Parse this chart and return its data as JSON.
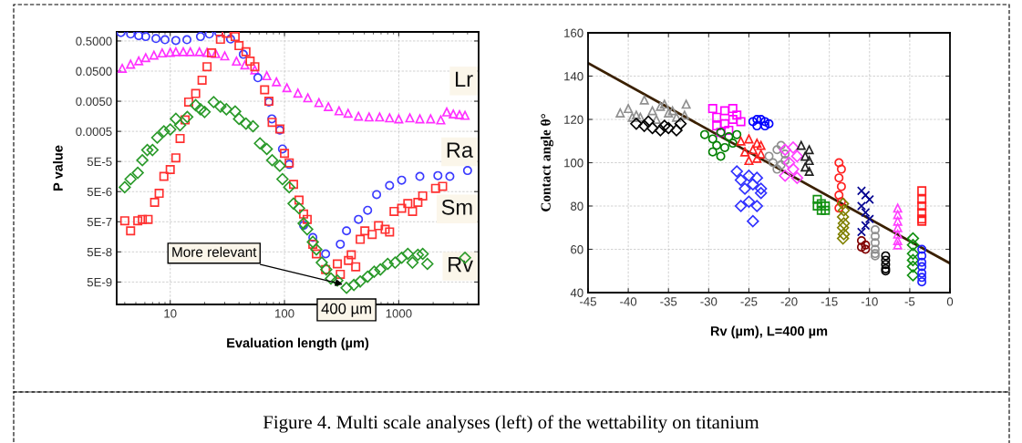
{
  "chart_data": [
    {
      "type": "scatter",
      "xlabel": "Evaluation length (µm)",
      "ylabel": "P value",
      "log": "xy",
      "grid": true,
      "xlim": [
        3.4,
        5000
      ],
      "ylim": [
        9e-10,
        1
      ],
      "xticks": [
        10,
        100,
        1000
      ],
      "yticks": [
        {
          "value": 0.5,
          "label": "0.5000"
        },
        {
          "value": 0.05,
          "label": "0.0500"
        },
        {
          "value": 0.005,
          "label": "0.0050"
        },
        {
          "value": 0.0005,
          "label": "0.0005"
        },
        {
          "value": 5e-05,
          "label": "5E-5"
        },
        {
          "value": 5e-06,
          "label": "5E-6"
        },
        {
          "value": 5e-07,
          "label": "5E-7"
        },
        {
          "value": 5e-08,
          "label": "5E-8"
        },
        {
          "value": 5e-09,
          "label": "5E-9"
        }
      ],
      "annotations": [
        {
          "text": "More relevant",
          "x": 340,
          "y": 4e-09
        },
        "400 µm",
        "Figure 4. Multi scale analyses (left) of the wettability on titanium"
      ],
      "series": [
        {
          "name": "Lr",
          "color": "#ff30ff",
          "marker": "triangle",
          "x": [
            3.8,
            4.5,
            5.3,
            6.1,
            7.2,
            8.5,
            10,
            11.2,
            13,
            15,
            18,
            21,
            25,
            30,
            38,
            45,
            55,
            70,
            85,
            105,
            131,
            160,
            200,
            242,
            300,
            360,
            444,
            550,
            680,
            831,
            1000,
            1250,
            1530,
            1900,
            2330,
            2630,
            3000,
            3400,
            3800
          ],
          "values": [
            0.062,
            0.085,
            0.11,
            0.14,
            0.17,
            0.2,
            0.21,
            0.22,
            0.22,
            0.22,
            0.22,
            0.21,
            0.19,
            0.16,
            0.107,
            0.08,
            0.055,
            0.035,
            0.022,
            0.014,
            0.0093,
            0.0065,
            0.0045,
            0.0033,
            0.0024,
            0.002,
            0.0016,
            0.0015,
            0.0015,
            0.0014,
            0.0013,
            0.0014,
            0.0013,
            0.0013,
            0.0012,
            0.0022,
            0.0019,
            0.0018,
            0.0017
          ]
        },
        {
          "name": "Ra",
          "color": "#3a3aff",
          "marker": "circle",
          "x": [
            3.7,
            4.5,
            5.3,
            6.1,
            7.5,
            9,
            11.2,
            14,
            18.4,
            22,
            26.6,
            33.7,
            43.6,
            58.5,
            73,
            77.5,
            91,
            96,
            110,
            147,
            177,
            229,
            308,
            349,
            444,
            534,
            640,
            831,
            1060,
            1530,
            2200,
            2800,
            4000
          ],
          "values": [
            0.95,
            0.85,
            0.75,
            0.7,
            0.6,
            0.55,
            0.52,
            0.55,
            0.7,
            0.85,
            0.95,
            0.58,
            0.18,
            0.03,
            0.0047,
            0.0013,
            0.00055,
            0.00013,
            4e-05,
            3.8e-07,
            1.5e-07,
            4.3e-08,
            9e-08,
            2.5e-07,
            6e-07,
            1.2e-06,
            4e-06,
            8e-06,
            1.2e-05,
            1.6e-05,
            1.7e-05,
            1.6e-05,
            2.5e-05
          ]
        },
        {
          "name": "Sm",
          "color": "#ff3030",
          "marker": "square",
          "x": [
            4.0,
            4.5,
            5.2,
            5.7,
            6.4,
            7.3,
            8,
            8.8,
            10,
            11.2,
            12.2,
            13.5,
            14.5,
            16.7,
            19,
            21,
            23,
            27.5,
            31,
            37,
            40,
            46,
            50,
            55,
            67,
            73,
            78,
            91,
            100,
            110,
            120,
            134,
            147,
            158,
            177,
            190,
            229,
            290,
            308,
            363,
            384,
            420,
            460,
            505,
            585,
            665,
            760,
            831,
            910,
            1060,
            1200,
            1320,
            1470,
            1620,
            2100,
            2420
          ],
          "values": [
            5.4e-07,
            2.5e-07,
            5.4e-07,
            6e-07,
            6e-07,
            2.2e-06,
            4.4e-06,
            1.6e-05,
            2.7e-05,
            6.6e-05,
            0.00029,
            0.0012,
            0.0047,
            0.009,
            0.025,
            0.07,
            0.2,
            0.57,
            0.9,
            0.7,
            0.35,
            0.22,
            0.107,
            0.07,
            0.012,
            0.005,
            0.001,
            0.0006,
            9.3e-05,
            4.5e-05,
            8.7e-06,
            2.6e-06,
            9e-07,
            6e-07,
            9e-08,
            4.3e-08,
            1.3e-08,
            2e-08,
            9e-09,
            2.6e-08,
            4e-08,
            1.6e-08,
            1.3e-07,
            2.5e-07,
            1.9e-07,
            3.7e-07,
            2.8e-07,
            2.3e-07,
            1.1e-06,
            1.4e-06,
            2e-06,
            1.1e-06,
            2.2e-06,
            3.6e-06,
            6.4e-06,
            7.5e-06
          ]
        },
        {
          "name": "Rv",
          "color": "#2a9a2a",
          "marker": "diamond",
          "x": [
            4.0,
            4.5,
            5.2,
            5.7,
            6.3,
            7.0,
            7.7,
            8.8,
            10,
            11.2,
            12.2,
            14.1,
            16.7,
            18.4,
            20,
            24,
            27.5,
            31,
            37,
            40,
            46,
            53,
            61,
            70,
            78,
            91,
            96,
            110,
            120,
            134,
            147,
            158,
            177,
            190,
            212,
            232,
            255,
            290,
            349,
            405,
            460,
            534,
            610,
            690,
            800,
            930,
            1060,
            1200,
            1320,
            1470,
            1620,
            1780,
            3800
          ],
          "values": [
            7e-06,
            1.3e-05,
            2.1e-05,
            5.5e-05,
            0.00012,
            0.00012,
            0.00031,
            0.0005,
            0.00058,
            0.0013,
            0.0008,
            0.0015,
            0.0037,
            0.0027,
            0.0022,
            0.0047,
            0.0033,
            0.0027,
            0.0023,
            0.0013,
            0.0009,
            0.00074,
            0.0002,
            0.00013,
            5.5e-05,
            3.6e-05,
            1.3e-05,
            7e-06,
            2e-06,
            1.4e-06,
            4.4e-07,
            2.8e-07,
            1.07e-07,
            6e-08,
            2.2e-08,
            1.3e-08,
            6.5e-09,
            5.6e-09,
            3.2e-09,
            4e-09,
            5.2e-09,
            7.5e-09,
            1.1e-08,
            1.3e-08,
            2e-08,
            2.2e-08,
            3.2e-08,
            4.3e-08,
            2.2e-08,
            4e-08,
            4.3e-08,
            2e-08,
            3.2e-08
          ]
        }
      ]
    },
    {
      "type": "scatter",
      "xlabel": "Rv (µm), L=400 µm",
      "ylabel": "Contact angle θ°",
      "grid": true,
      "xlim": [
        -45,
        0
      ],
      "ylim": [
        40,
        160
      ],
      "xticks": [
        -45,
        -40,
        -35,
        -30,
        -25,
        -20,
        -15,
        -10,
        -5,
        0
      ],
      "yticks": [
        40,
        60,
        80,
        100,
        120,
        140,
        160
      ],
      "series": [
        {
          "color": "#909090",
          "marker": "triangle",
          "x": [
            -41,
            -40,
            -39,
            -38,
            -37,
            -36,
            -35,
            -34,
            -33,
            -38.5,
            -36.5,
            -34.5,
            -39.5,
            -35.5,
            -32.8
          ],
          "values": [
            123,
            125,
            122,
            129,
            124,
            126,
            123,
            121,
            122,
            121,
            120,
            124,
            121,
            127,
            127
          ]
        },
        {
          "color": "#000000",
          "marker": "diamond",
          "x": [
            -39,
            -38,
            -37,
            -36,
            -35,
            -34,
            -33.5,
            -37.5,
            -35.5
          ],
          "values": [
            118,
            117,
            116,
            115,
            116,
            115,
            118,
            119,
            117
          ]
        },
        {
          "color": "#ff00ff",
          "marker": "square",
          "x": [
            -29.5,
            -29,
            -28,
            -27,
            -26.5,
            -29,
            -28,
            -27,
            -26,
            -28.5,
            -27.5
          ],
          "values": [
            125,
            121,
            124,
            125,
            122,
            117,
            118,
            120,
            119,
            114,
            115
          ]
        },
        {
          "color": "#008000",
          "marker": "circle",
          "x": [
            -30.5,
            -29.5,
            -28.5,
            -27.5,
            -26.5,
            -29,
            -28,
            -27,
            -28.5,
            -29.5
          ],
          "values": [
            113,
            111,
            114,
            112,
            113,
            108,
            107,
            109,
            103,
            105
          ]
        },
        {
          "color": "#0000ff",
          "marker": "circle",
          "x": [
            -24.5,
            -24,
            -23.5,
            -23,
            -22.5,
            -24,
            -23
          ],
          "values": [
            119,
            120,
            120,
            119,
            118,
            117,
            117
          ]
        },
        {
          "color": "#ff2020",
          "marker": "triangle",
          "x": [
            -26,
            -25,
            -24,
            -23.5,
            -25.5,
            -24.5,
            -23.5,
            -25,
            -24
          ],
          "values": [
            110,
            111,
            109,
            108,
            105,
            106,
            104,
            101,
            102
          ]
        },
        {
          "color": "#909090",
          "marker": "circle",
          "x": [
            -22.5,
            -21.5,
            -21,
            -20.5,
            -22,
            -21,
            -20.5,
            -21.5
          ],
          "values": [
            103,
            106,
            108,
            104,
            100,
            99,
            101,
            97
          ]
        },
        {
          "color": "#ff40ff",
          "marker": "diamond",
          "x": [
            -20.5,
            -19.5,
            -19,
            -20,
            -19.5,
            -20.5,
            -19
          ],
          "values": [
            106,
            107,
            103,
            100,
            97,
            94,
            93
          ]
        },
        {
          "color": "#202020",
          "marker": "triangle",
          "x": [
            -18.5,
            -17.5,
            -18,
            -17.5,
            -18,
            -17.5
          ],
          "values": [
            108,
            106,
            103,
            101,
            98,
            96
          ]
        },
        {
          "color": "#3030ff",
          "marker": "diamond",
          "x": [
            -26.5,
            -26,
            -25,
            -24,
            -23.5,
            -25.5,
            -24.5,
            -23.5,
            -26,
            -25,
            -24,
            -24.5
          ],
          "values": [
            96,
            92,
            94,
            93,
            88,
            88,
            90,
            86,
            80,
            82,
            80,
            73
          ]
        },
        {
          "color": "#ff2020",
          "marker": "circle",
          "x": [
            -13.8,
            -13.5,
            -13.8,
            -13.5,
            -13.8,
            -13.5,
            -13.8
          ],
          "values": [
            100,
            97,
            93,
            89,
            85,
            82,
            79
          ]
        },
        {
          "color": "#109010",
          "marker": "square",
          "x": [
            -16.5,
            -16,
            -15.5,
            -16,
            -15.5,
            -16.5
          ],
          "values": [
            83,
            81,
            80,
            78,
            78,
            80
          ]
        },
        {
          "color": "#808000",
          "marker": "diamond",
          "x": [
            -13.3,
            -13.2,
            -13.3,
            -13.2,
            -13.3,
            -13.2,
            -13.3
          ],
          "values": [
            81,
            78,
            75,
            72,
            70,
            67,
            65
          ]
        },
        {
          "color": "#000090",
          "marker": "cross",
          "x": [
            -11,
            -10.5,
            -10,
            -11,
            -10.5,
            -10,
            -10.5,
            -11
          ],
          "values": [
            87,
            85,
            83,
            80,
            77,
            74,
            71,
            68
          ]
        },
        {
          "color": "#800000",
          "marker": "circle",
          "x": [
            -11,
            -10.5,
            -11,
            -10.5
          ],
          "values": [
            64,
            62,
            61,
            60
          ]
        },
        {
          "color": "#909090",
          "marker": "circle",
          "x": [
            -9.3,
            -9.3,
            -9.3,
            -9.3,
            -9.3,
            -9.3
          ],
          "values": [
            69,
            66,
            63,
            60,
            58,
            57
          ]
        },
        {
          "color": "#000000",
          "marker": "circle",
          "x": [
            -8,
            -8,
            -8,
            -8,
            -8
          ],
          "values": [
            57,
            55,
            53,
            51,
            50
          ]
        },
        {
          "color": "#ff40ff",
          "marker": "triangle",
          "x": [
            -6.5,
            -6.5,
            -6.5,
            -6.5,
            -6.5,
            -6.5,
            -6.5
          ],
          "values": [
            79,
            76,
            73,
            70,
            67,
            64,
            62
          ]
        },
        {
          "color": "#109010",
          "marker": "diamond",
          "x": [
            -4.6,
            -4.6,
            -4.6,
            -4.6,
            -4.6,
            -4.6
          ],
          "values": [
            65,
            62,
            58,
            55,
            52,
            48
          ]
        },
        {
          "color": "#2020ff",
          "marker": "circle",
          "x": [
            -3.5,
            -3.5,
            -3.5,
            -3.5,
            -3.5,
            -3.5,
            -3.5
          ],
          "values": [
            60,
            57,
            54,
            52,
            49,
            47,
            45
          ]
        },
        {
          "color": "#ff2020",
          "marker": "square",
          "x": [
            -3.5,
            -3.5,
            -3.5,
            -3.5,
            -3.5,
            -3.5
          ],
          "values": [
            87,
            83,
            80,
            77,
            74,
            73
          ]
        },
        {
          "type": "line",
          "color": "#3a2000",
          "x": [
            -45,
            0
          ],
          "values": [
            146,
            53.5
          ]
        }
      ]
    }
  ]
}
